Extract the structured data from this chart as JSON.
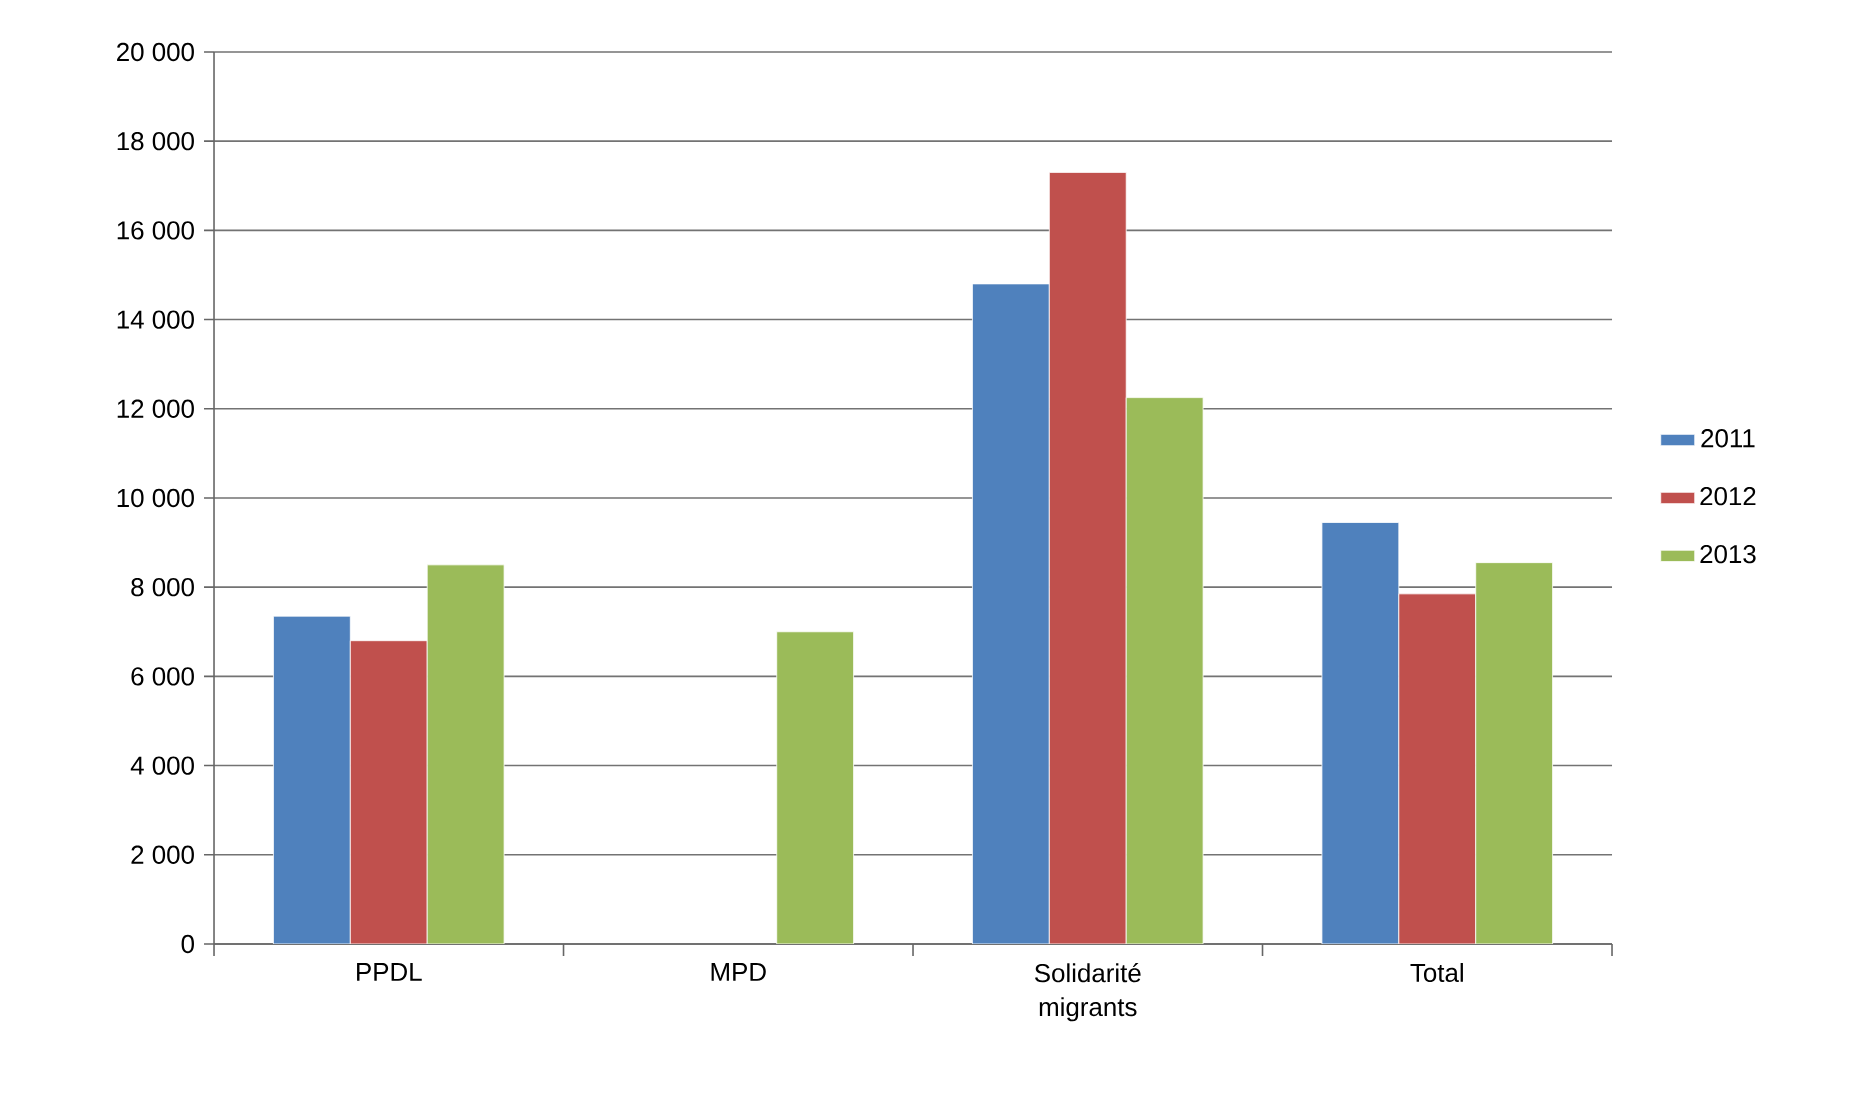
{
  "chart_data": {
    "type": "bar",
    "categories": [
      "PPDL",
      "MPD",
      "Solidarité migrants",
      "Total"
    ],
    "series": [
      {
        "name": "2011",
        "color": "#4f81bd",
        "values": [
          7350,
          null,
          14800,
          9450
        ]
      },
      {
        "name": "2012",
        "color": "#c0504d",
        "values": [
          6800,
          null,
          17300,
          7850
        ]
      },
      {
        "name": "2013",
        "color": "#9bbb59",
        "values": [
          8500,
          7000,
          12250,
          8550
        ]
      }
    ],
    "ylim": [
      0,
      20000
    ],
    "yticks": [
      0,
      {
        "value": 2000,
        "label": "2 000"
      },
      {
        "value": 4000,
        "label": "4 000"
      },
      {
        "value": 6000,
        "label": "6 000"
      },
      {
        "value": 8000,
        "label": "8 000"
      },
      {
        "value": 10000,
        "label": "10 000"
      },
      {
        "value": 12000,
        "label": "12 000"
      },
      {
        "value": 14000,
        "label": "14 000"
      },
      {
        "value": 16000,
        "label": "16 000"
      },
      {
        "value": 18000,
        "label": "18 000"
      },
      {
        "value": 20000,
        "label": "20 000"
      }
    ],
    "grid": "y",
    "legend": "right"
  }
}
